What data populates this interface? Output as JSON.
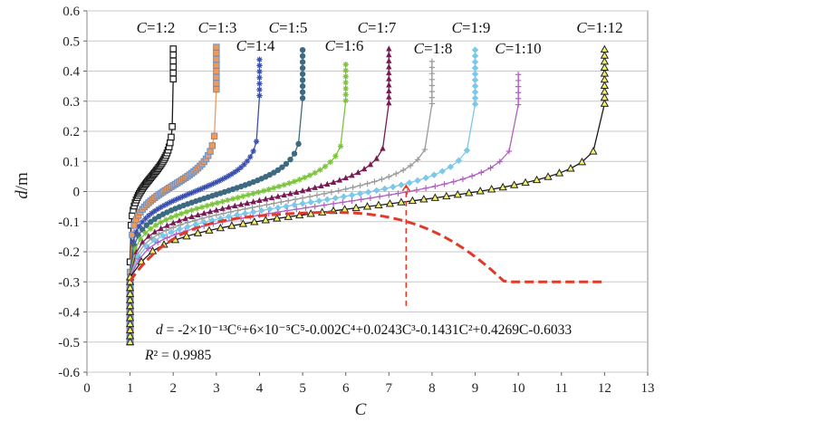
{
  "chart_data": {
    "type": "line",
    "title": "",
    "xlabel": "C",
    "ylabel": "d/m",
    "xlim": [
      0,
      13
    ],
    "ylim": [
      -0.6,
      0.6
    ],
    "xticks": [
      "0",
      "1",
      "2",
      "3",
      "4",
      "5",
      "6",
      "7",
      "8",
      "9",
      "10",
      "11",
      "12",
      "13"
    ],
    "yticks": [
      "-0.6",
      "-0.5",
      "-0.4",
      "-0.3",
      "-0.2",
      "-0.1",
      "0",
      "0.1",
      "0.2",
      "0.3",
      "0.4",
      "0.5",
      "0.6"
    ],
    "grid": "horizontal",
    "series": [
      {
        "name": "C=1:2",
        "label_prefix": "C",
        "label_suffix": "=1:2",
        "cmax": 2,
        "d0": 0.05,
        "dtop": 0.49,
        "k": 2.2,
        "color": "#1a1a1a",
        "marker": "square-open"
      },
      {
        "name": "C=1:3",
        "label_prefix": "C",
        "label_suffix": "=1:3",
        "cmax": 3,
        "d0": 0.02,
        "dtop": 0.49,
        "k": 2.0,
        "color": "#f09a5a",
        "marker": "square-blue-edge"
      },
      {
        "name": "C=1:4",
        "label_prefix": "C",
        "label_suffix": "=1:4",
        "cmax": 4,
        "d0": 0.0,
        "dtop": 0.44,
        "k": 2.0,
        "color": "#3a4fb0",
        "marker": "asterisk"
      },
      {
        "name": "C=1:5",
        "label_prefix": "C",
        "label_suffix": "=1:5",
        "cmax": 5,
        "d0": -0.01,
        "dtop": 0.49,
        "k": 2.0,
        "color": "#3d6a80",
        "marker": "circle"
      },
      {
        "name": "C=1:6",
        "label_prefix": "C",
        "label_suffix": "=1:6",
        "cmax": 6,
        "d0": -0.02,
        "dtop": 0.44,
        "k": 2.1,
        "color": "#7cc43c",
        "marker": "asterisk"
      },
      {
        "name": "C=1:7",
        "label_prefix": "C",
        "label_suffix": "=1:7",
        "cmax": 7,
        "d0": -0.03,
        "dtop": 0.49,
        "k": 2.1,
        "color": "#7a1a55",
        "marker": "triangle"
      },
      {
        "name": "C=1:8",
        "label_prefix": "C",
        "label_suffix": "=1:8",
        "cmax": 8,
        "d0": -0.035,
        "dtop": 0.44,
        "k": 2.2,
        "color": "#9a9a9a",
        "marker": "plus"
      },
      {
        "name": "C=1:9",
        "label_prefix": "C",
        "label_suffix": "=1:9",
        "cmax": 9,
        "d0": -0.04,
        "dtop": 0.49,
        "k": 2.2,
        "color": "#7cc8e8",
        "marker": "diamond"
      },
      {
        "name": "C=1:10",
        "label_prefix": "C",
        "label_suffix": "=1:10",
        "cmax": 10,
        "d0": -0.045,
        "dtop": 0.39,
        "k": 2.3,
        "color": "#b060c0",
        "marker": "plus"
      },
      {
        "name": "C=1:12",
        "label_prefix": "C",
        "label_suffix": "=1:12",
        "cmax": 12,
        "d0": -0.05,
        "dtop": 0.49,
        "k": 2.3,
        "color": "#1a1a1a",
        "marker": "triangle-yellow"
      }
    ],
    "fit": {
      "name": "polynomial fit",
      "coeffs": [
        -2e-13,
        6e-05,
        -0.002,
        0.0243,
        -0.1431,
        0.4269,
        -0.6033
      ],
      "color": "#e03a2a"
    },
    "annotations": {
      "equation_prefix": "d",
      "equation_rest": " = -2×10⁻¹³C⁶+6×10⁻⁵C⁵-0.002C⁴+0.0243C³-0.1431C²+0.4269C-0.6033",
      "r2_label": "R",
      "r2_rest": "² = 0.9985"
    },
    "marker_line": {
      "x": 7.4,
      "y_from": -0.38,
      "y_to": 0.02,
      "color": "#e03a2a"
    }
  }
}
